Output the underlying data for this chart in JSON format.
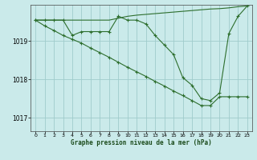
{
  "background_color": "#caeaea",
  "plot_bg_color": "#caeaea",
  "grid_color": "#a0cccc",
  "line_color": "#2d6e2d",
  "title": "Graphe pression niveau de la mer (hPa)",
  "xlim": [
    -0.5,
    23.5
  ],
  "ylim": [
    1016.65,
    1019.95
  ],
  "yticks": [
    1017,
    1018,
    1019
  ],
  "xticks": [
    0,
    1,
    2,
    3,
    4,
    5,
    6,
    7,
    8,
    9,
    10,
    11,
    12,
    13,
    14,
    15,
    16,
    17,
    18,
    19,
    20,
    21,
    22,
    23
  ],
  "series": [
    {
      "x": [
        0,
        1,
        2,
        3,
        4,
        5,
        6,
        7,
        8,
        9,
        10,
        11,
        12,
        13,
        14,
        15,
        16,
        17,
        18,
        19,
        20,
        21,
        22,
        23
      ],
      "y": [
        1019.55,
        1019.55,
        1019.55,
        1019.55,
        1019.55,
        1019.55,
        1019.55,
        1019.55,
        1019.55,
        1019.6,
        1019.65,
        1019.68,
        1019.7,
        1019.72,
        1019.74,
        1019.76,
        1019.78,
        1019.8,
        1019.82,
        1019.84,
        1019.85,
        1019.87,
        1019.9,
        1019.92
      ],
      "marker": false
    },
    {
      "x": [
        0,
        1,
        2,
        3,
        4,
        5,
        6,
        7,
        8,
        9,
        10,
        11,
        12,
        13,
        14,
        15,
        16,
        17,
        18,
        19,
        20,
        21,
        22,
        23
      ],
      "y": [
        1019.55,
        1019.55,
        1019.55,
        1019.55,
        1019.15,
        1019.25,
        1019.25,
        1019.25,
        1019.25,
        1019.65,
        1019.55,
        1019.55,
        1019.45,
        1019.15,
        1018.9,
        1018.65,
        1018.05,
        1017.85,
        1017.5,
        1017.45,
        1017.65,
        1019.2,
        1019.65,
        1019.92
      ],
      "marker": true
    },
    {
      "x": [
        0,
        1,
        2,
        3,
        4,
        5,
        6,
        7,
        8,
        9,
        10,
        11,
        12,
        13,
        14,
        15,
        16,
        17,
        18,
        19,
        20,
        21,
        22,
        23
      ],
      "y": [
        1019.55,
        1019.4,
        1019.28,
        1019.15,
        1019.05,
        1018.95,
        1018.82,
        1018.7,
        1018.58,
        1018.45,
        1018.32,
        1018.2,
        1018.08,
        1017.95,
        1017.83,
        1017.7,
        1017.58,
        1017.45,
        1017.32,
        1017.32,
        1017.55,
        1017.55,
        1017.55,
        1017.55
      ],
      "marker": true
    }
  ]
}
